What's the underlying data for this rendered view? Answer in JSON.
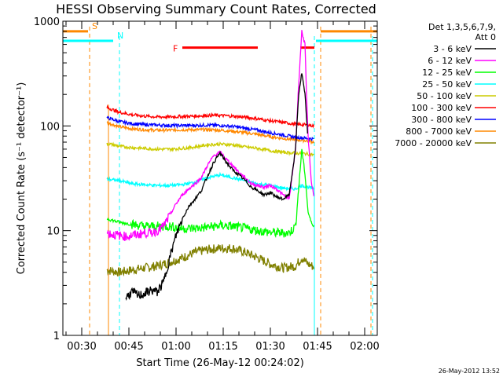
{
  "chart_data": {
    "type": "line",
    "title": "HESSI Observing Summary Count Rates, Corrected",
    "xlabel": "Start Time (26-May-12 00:24:02)",
    "ylabel": "Corrected Count Rate (s⁻¹ detector⁻¹)",
    "yscale": "log",
    "ylim": [
      1,
      1000
    ],
    "xlim_minutes": [
      24.0,
      124.0
    ],
    "x_ticks": [
      {
        "label": "00:30",
        "minute": 30
      },
      {
        "label": "00:45",
        "minute": 45
      },
      {
        "label": "01:00",
        "minute": 60
      },
      {
        "label": "01:15",
        "minute": 75
      },
      {
        "label": "01:30",
        "minute": 90
      },
      {
        "label": "01:45",
        "minute": 105
      },
      {
        "label": "02:00",
        "minute": 120
      }
    ],
    "y_ticks": [
      {
        "label": "1",
        "value": 1
      },
      {
        "label": "10",
        "value": 10
      },
      {
        "label": "100",
        "value": 100
      },
      {
        "label": "1000",
        "value": 1000
      }
    ],
    "legend": {
      "header1": "Det 1,3,5,6,7,9,",
      "header2": "Att 0",
      "position": "right"
    },
    "series": [
      {
        "name": "3 - 6 keV",
        "color": "#000000",
        "x": [
          40,
          42,
          44,
          46,
          48,
          50,
          52,
          54,
          56,
          58,
          60,
          62,
          64,
          66,
          68,
          70,
          72,
          74,
          76,
          78,
          80,
          82,
          84,
          86,
          88,
          90,
          92,
          94,
          96,
          98,
          99,
          100,
          101,
          101.5,
          102,
          103,
          104
        ],
        "values": [
          null,
          null,
          2.3,
          2.6,
          2.4,
          2.5,
          2.7,
          2.6,
          3.2,
          5.5,
          9,
          13,
          17,
          20,
          24,
          33,
          45,
          55,
          45,
          38,
          34,
          30,
          26,
          24,
          22,
          23,
          21,
          20,
          22,
          60,
          200,
          320,
          200,
          120,
          70,
          null,
          null
        ]
      },
      {
        "name": "6 - 12 keV",
        "color": "#ff00ff",
        "x": [
          38,
          40,
          42,
          44,
          46,
          48,
          50,
          52,
          54,
          56,
          58,
          60,
          62,
          64,
          66,
          68,
          70,
          72,
          74,
          76,
          78,
          80,
          82,
          84,
          86,
          88,
          90,
          92,
          94,
          96,
          98,
          99,
          100,
          101,
          101.5,
          102,
          103,
          104
        ],
        "values": [
          9.5,
          9.2,
          9.0,
          8.8,
          9.0,
          9.2,
          9.5,
          9.5,
          10,
          11,
          14,
          18,
          22,
          25,
          28,
          32,
          42,
          52,
          56,
          48,
          42,
          36,
          32,
          28,
          27,
          26,
          27,
          25,
          22,
          20,
          60,
          250,
          800,
          600,
          200,
          80,
          30,
          20
        ]
      },
      {
        "name": "12 - 25 keV",
        "color": "#00ff00",
        "x": [
          38,
          42,
          46,
          50,
          54,
          58,
          62,
          66,
          70,
          74,
          78,
          82,
          86,
          90,
          94,
          96,
          98,
          99,
          100,
          101,
          102,
          103,
          104
        ],
        "values": [
          13,
          12,
          11.5,
          11,
          11,
          11,
          10.5,
          10.5,
          10.8,
          11.2,
          11,
          10.5,
          10,
          9.6,
          9.5,
          9.5,
          11,
          25,
          60,
          35,
          15,
          12,
          11
        ]
      },
      {
        "name": "25 - 50 keV",
        "color": "#00ffff",
        "x": [
          38,
          42,
          46,
          50,
          54,
          58,
          62,
          66,
          70,
          74,
          78,
          82,
          86,
          90,
          94,
          98,
          100,
          102,
          104
        ],
        "values": [
          31,
          30,
          28,
          27.5,
          27,
          27,
          27.5,
          29,
          32,
          34,
          32,
          30,
          28,
          27,
          25.5,
          25,
          27,
          26,
          25
        ]
      },
      {
        "name": "50 - 100 keV",
        "color": "#cccc00",
        "x": [
          38,
          42,
          46,
          50,
          54,
          58,
          62,
          66,
          70,
          74,
          78,
          82,
          86,
          90,
          94,
          98,
          102,
          104
        ],
        "values": [
          68,
          64,
          62,
          61,
          60,
          60,
          61,
          63,
          66,
          67,
          66,
          63,
          61,
          58,
          56,
          55,
          54,
          53
        ]
      },
      {
        "name": "100 - 300 keV",
        "color": "#ff0000",
        "x": [
          38,
          42,
          46,
          50,
          54,
          58,
          62,
          66,
          70,
          74,
          78,
          82,
          86,
          90,
          94,
          98,
          102,
          104
        ],
        "values": [
          150,
          135,
          128,
          124,
          122,
          122,
          123,
          124,
          126,
          126,
          124,
          121,
          117,
          112,
          108,
          104,
          102,
          100
        ]
      },
      {
        "name": "300 - 800 keV",
        "color": "#0000ff",
        "x": [
          38,
          42,
          46,
          50,
          54,
          58,
          62,
          66,
          70,
          74,
          78,
          82,
          86,
          90,
          94,
          98,
          102,
          104
        ],
        "values": [
          120,
          110,
          105,
          103,
          102,
          101,
          101,
          101,
          102,
          101,
          99,
          95,
          91,
          86,
          82,
          78,
          76,
          75
        ]
      },
      {
        "name": "800 - 7000 keV",
        "color": "#ff8800",
        "x": [
          38,
          42,
          46,
          50,
          54,
          58,
          62,
          66,
          70,
          74,
          78,
          82,
          86,
          90,
          94,
          98,
          102,
          104
        ],
        "values": [
          108,
          98,
          94,
          92,
          91,
          91,
          92,
          92,
          92,
          91,
          89,
          86,
          83,
          79,
          76,
          74,
          72,
          70
        ]
      },
      {
        "name": "7000 - 20000 keV",
        "color": "#808000",
        "x": [
          38,
          42,
          46,
          50,
          54,
          58,
          62,
          66,
          70,
          74,
          78,
          82,
          86,
          90,
          94,
          98,
          100,
          102,
          104
        ],
        "values": [
          4.2,
          4.0,
          4.2,
          4.4,
          4.6,
          5.0,
          5.5,
          6.2,
          6.6,
          6.8,
          6.8,
          6.2,
          5.5,
          4.8,
          4.4,
          4.6,
          5.5,
          4.8,
          4.5
        ]
      }
    ],
    "intervals": [
      {
        "label": "S",
        "color": "#ff8800",
        "x": [
          24,
          32
        ],
        "value": 800,
        "markers": [
          32.5,
          106,
          122
        ]
      },
      {
        "label": "N",
        "color": "#00ffff",
        "x": [
          24,
          40
        ],
        "value": 650,
        "markers": [
          42,
          104,
          122.5
        ]
      },
      {
        "label": "F",
        "color": "#ff0000",
        "x": [
          62,
          86
        ],
        "value": 560
      },
      {
        "label": "",
        "color": "#ff0000",
        "x": [
          99.5,
          104
        ],
        "value": 560
      }
    ],
    "intervals_after": [
      {
        "color": "#ff8800",
        "x": [
          106,
          124
        ],
        "value": 800
      },
      {
        "color": "#00ffff",
        "x": [
          104.5,
          124
        ],
        "value": 650
      }
    ],
    "data_span_minutes": [
      38.5,
      104
    ],
    "grid": false
  },
  "footer": {
    "timestamp": "26-May-2012 13:52"
  }
}
